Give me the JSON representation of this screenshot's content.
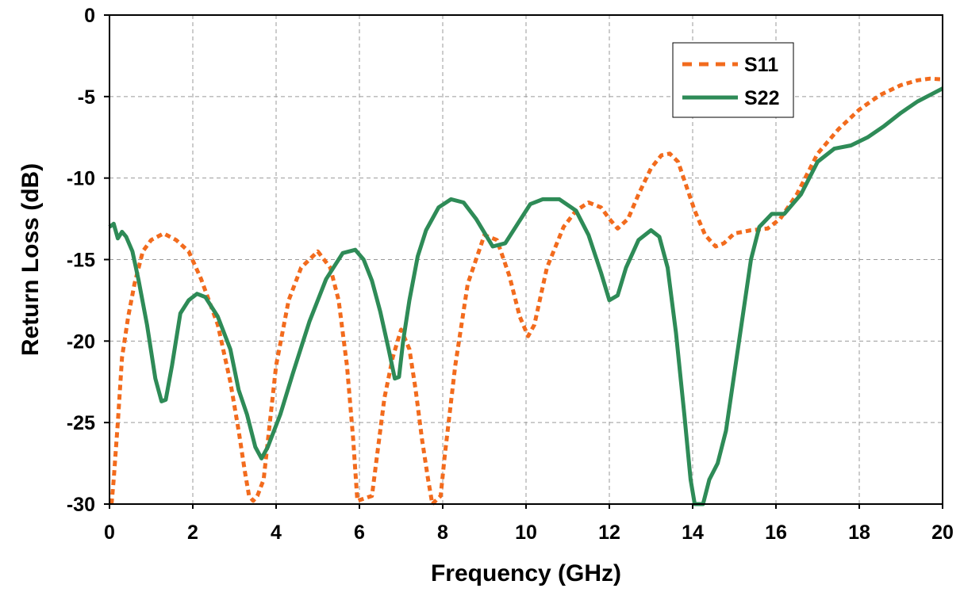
{
  "chart_data": {
    "type": "line",
    "title": "",
    "xlabel": "Frequency (GHz)",
    "ylabel": "Return Loss (dB)",
    "xlim": [
      0,
      20
    ],
    "ylim": [
      -30,
      0
    ],
    "xticks": [
      "0",
      "2",
      "4",
      "6",
      "8",
      "10",
      "12",
      "14",
      "16",
      "18",
      "20"
    ],
    "yticks": [
      "0",
      "-5",
      "-10",
      "-15",
      "-20",
      "-25",
      "-30"
    ],
    "grid": true,
    "legend_position": "top-right",
    "series": [
      {
        "name": "S11",
        "color": "#f26b1d",
        "style": "dashed",
        "x": [
          0.05,
          0.1,
          0.2,
          0.3,
          0.45,
          0.6,
          0.8,
          1.0,
          1.3,
          1.6,
          1.9,
          2.2,
          2.6,
          2.9,
          3.1,
          3.25,
          3.35,
          3.45,
          3.55,
          3.7,
          3.85,
          4.0,
          4.3,
          4.6,
          5.0,
          5.3,
          5.5,
          5.7,
          5.85,
          5.95,
          6.3,
          6.45,
          6.6,
          6.8,
          7.0,
          7.2,
          7.35,
          7.5,
          7.65,
          7.75,
          7.95,
          8.05,
          8.3,
          8.6,
          9.0,
          9.3,
          9.6,
          9.85,
          10.05,
          10.2,
          10.5,
          10.9,
          11.2,
          11.5,
          11.8,
          12.0,
          12.2,
          12.45,
          12.7,
          13.0,
          13.25,
          13.45,
          13.65,
          13.85,
          14.05,
          14.3,
          14.55,
          14.75,
          15.0,
          15.4,
          15.8,
          16.1,
          16.5,
          17.0,
          17.5,
          18.0,
          18.5,
          19.0,
          19.4,
          19.7,
          20.0
        ],
        "y": [
          -30,
          -28.5,
          -25,
          -21,
          -18.5,
          -16.5,
          -14.5,
          -13.8,
          -13.4,
          -13.8,
          -14.5,
          -16.2,
          -19,
          -22.5,
          -25.5,
          -28,
          -29.5,
          -29.8,
          -29.5,
          -28.5,
          -25,
          -21.5,
          -17.5,
          -15.5,
          -14.5,
          -15.5,
          -17.5,
          -21.5,
          -26,
          -29.8,
          -29.5,
          -26.5,
          -23.5,
          -21,
          -19.3,
          -20.5,
          -23,
          -26,
          -28.5,
          -30,
          -29.5,
          -27,
          -21.5,
          -16.5,
          -13.5,
          -13.8,
          -16,
          -18.5,
          -19.7,
          -19,
          -15.5,
          -13,
          -12,
          -11.5,
          -11.8,
          -12.5,
          -13.1,
          -12.5,
          -11,
          -9.4,
          -8.6,
          -8.5,
          -9,
          -10.5,
          -12,
          -13.5,
          -14.2,
          -14,
          -13.4,
          -13.2,
          -13.1,
          -12.5,
          -11,
          -8.5,
          -7,
          -5.8,
          -4.9,
          -4.3,
          -4.0,
          -3.9,
          -3.95
        ]
      },
      {
        "name": "S22",
        "color": "#2e8b57",
        "style": "solid",
        "x": [
          0.0,
          0.1,
          0.2,
          0.3,
          0.4,
          0.55,
          0.7,
          0.9,
          1.1,
          1.25,
          1.35,
          1.5,
          1.7,
          1.9,
          2.1,
          2.3,
          2.6,
          2.9,
          3.1,
          3.3,
          3.5,
          3.65,
          3.8,
          4.1,
          4.4,
          4.8,
          5.2,
          5.6,
          5.9,
          6.1,
          6.3,
          6.5,
          6.7,
          6.85,
          6.95,
          7.05,
          7.2,
          7.4,
          7.6,
          7.9,
          8.2,
          8.5,
          8.8,
          9.2,
          9.5,
          9.8,
          10.1,
          10.4,
          10.8,
          11.2,
          11.5,
          11.8,
          12.0,
          12.2,
          12.4,
          12.7,
          13.0,
          13.2,
          13.4,
          13.6,
          13.8,
          13.95,
          14.05,
          14.15,
          14.25,
          14.4,
          14.6,
          14.8,
          15.0,
          15.2,
          15.4,
          15.6,
          15.9,
          16.2,
          16.6,
          17.0,
          17.4,
          17.8,
          18.2,
          18.6,
          19.0,
          19.4,
          19.7,
          20.0
        ],
        "y": [
          -13,
          -12.8,
          -13.7,
          -13.3,
          -13.6,
          -14.5,
          -16.3,
          -19,
          -22.3,
          -23.7,
          -23.6,
          -21.5,
          -18.3,
          -17.5,
          -17.1,
          -17.3,
          -18.5,
          -20.5,
          -23,
          -24.5,
          -26.5,
          -27.2,
          -26.5,
          -24.5,
          -22,
          -18.8,
          -16.2,
          -14.6,
          -14.4,
          -15,
          -16.3,
          -18.2,
          -20.5,
          -22.3,
          -22.2,
          -20,
          -17.5,
          -14.8,
          -13.2,
          -11.8,
          -11.3,
          -11.5,
          -12.5,
          -14.2,
          -14,
          -12.8,
          -11.6,
          -11.3,
          -11.3,
          -12,
          -13.5,
          -15.8,
          -17.5,
          -17.2,
          -15.5,
          -13.8,
          -13.2,
          -13.6,
          -15.5,
          -19.5,
          -24.5,
          -28.5,
          -30,
          -30,
          -30,
          -28.5,
          -27.5,
          -25.5,
          -22,
          -18.5,
          -15,
          -13,
          -12.2,
          -12.2,
          -11,
          -9,
          -8.2,
          -8,
          -7.5,
          -6.8,
          -6,
          -5.3,
          -4.9,
          -4.5
        ]
      }
    ]
  }
}
